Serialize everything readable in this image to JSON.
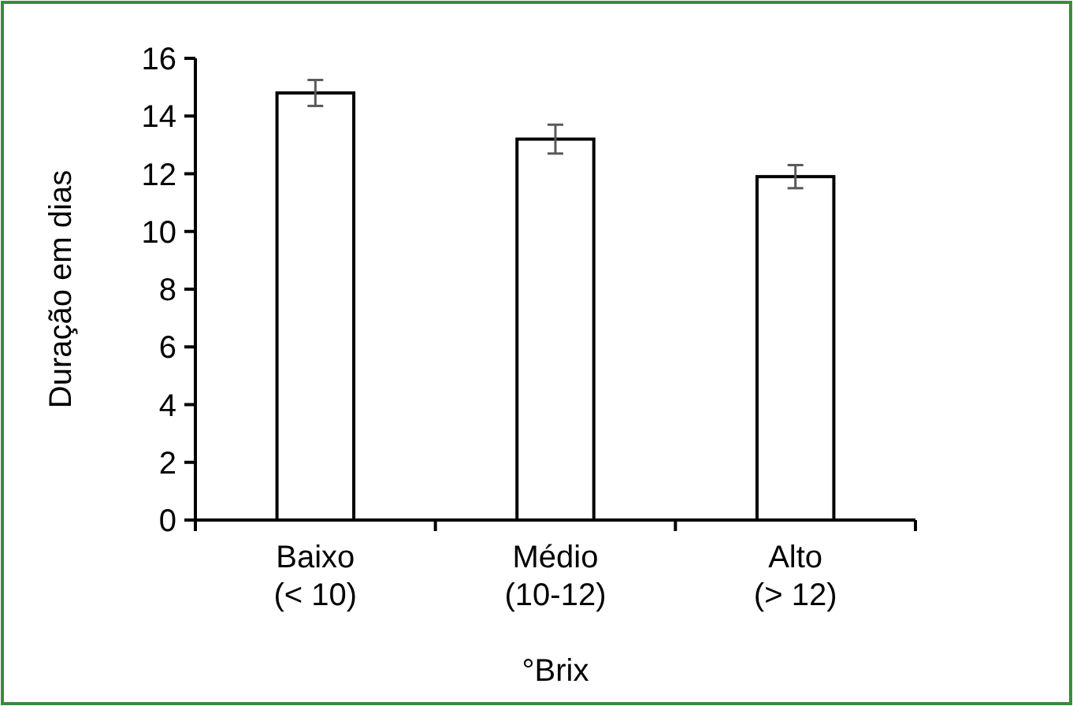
{
  "chart_data": {
    "type": "bar",
    "categories": [
      "Baixo\n(< 10)",
      "Médio\n(10-12)",
      "Alto\n(> 12)"
    ],
    "values": [
      14.8,
      13.2,
      11.9
    ],
    "errors": [
      0.45,
      0.5,
      0.4
    ],
    "color": "#ffffff",
    "xlabel": "°Brix",
    "ylabel": "Duração em dias",
    "ylim": [
      0,
      16
    ],
    "yticks": [
      0,
      2,
      4,
      6,
      8,
      10,
      12,
      14,
      16
    ],
    "grid": false
  }
}
